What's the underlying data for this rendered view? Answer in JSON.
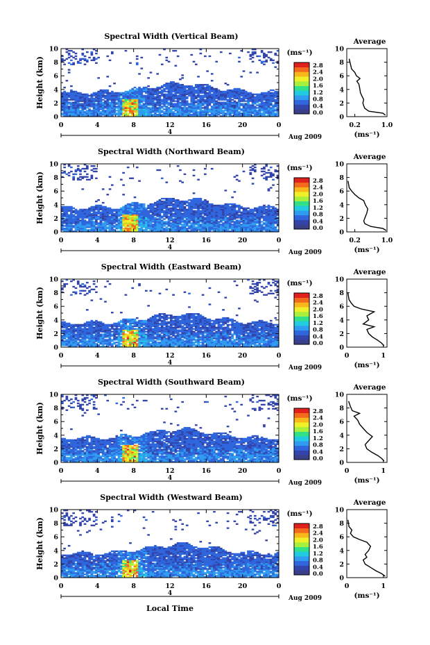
{
  "figure": {
    "date_label": "Aug 2009",
    "xlabel_bottom": "Local Time",
    "ylabel": "Height (km)",
    "unit_label": "(ms⁻¹)",
    "average_title": "Average",
    "average_xlabel": "(ms⁻¹)",
    "day_mark": "4",
    "colorbar_ticks": [
      "0.0",
      "0.4",
      "0.8",
      "1.2",
      "1.6",
      "2.0",
      "2.4",
      "2.8"
    ],
    "colorbar_colors": [
      "#3a3f8a",
      "#3344aa",
      "#2f66dd",
      "#2f9cf0",
      "#22cce0",
      "#33e08a",
      "#a8f03c",
      "#f0f028",
      "#f8b81c",
      "#f46a1c",
      "#e0201c"
    ]
  },
  "chart_data": [
    {
      "type": "heatmap",
      "title": "Spectral Width (Vertical Beam)",
      "xlabel": "",
      "ylabel": "Height (km)",
      "x_ticks": [
        "0",
        "4",
        "8",
        "12",
        "16",
        "20",
        "0"
      ],
      "xlim": [
        0,
        24
      ],
      "y_ticks": [
        "0",
        "2",
        "4",
        "6",
        "8",
        "10"
      ],
      "ylim": [
        0,
        10
      ],
      "colorbar": {
        "range": [
          0.0,
          2.8
        ]
      },
      "profile": {
        "title": "Average",
        "x_ticks": [
          "0.2",
          "1.0"
        ],
        "xlim": [
          0.0,
          1.0
        ],
        "y_ticks": [
          "0",
          "2",
          "4",
          "6",
          "8",
          "10"
        ],
        "ylim": [
          0,
          10
        ],
        "points": [
          [
            0.96,
            0.2
          ],
          [
            0.9,
            0.5
          ],
          [
            0.55,
            0.8
          ],
          [
            0.45,
            1.2
          ],
          [
            0.42,
            1.6
          ],
          [
            0.4,
            2.0
          ],
          [
            0.42,
            2.5
          ],
          [
            0.38,
            3.0
          ],
          [
            0.34,
            3.5
          ],
          [
            0.32,
            4.2
          ],
          [
            0.3,
            4.8
          ],
          [
            0.25,
            5.2
          ],
          [
            0.33,
            5.6
          ],
          [
            0.24,
            6.0
          ],
          [
            0.2,
            6.5
          ],
          [
            0.12,
            7.0
          ],
          [
            0.1,
            7.5
          ],
          [
            0.08,
            8.0
          ],
          [
            0.06,
            8.5
          ]
        ]
      }
    },
    {
      "type": "heatmap",
      "title": "Spectral Width (Northward Beam)",
      "xlabel": "",
      "ylabel": "Height (km)",
      "x_ticks": [
        "0",
        "4",
        "8",
        "12",
        "16",
        "20",
        "0"
      ],
      "xlim": [
        0,
        24
      ],
      "y_ticks": [
        "0",
        "2",
        "4",
        "6",
        "8",
        "10"
      ],
      "ylim": [
        0,
        10
      ],
      "colorbar": {
        "range": [
          0.0,
          2.8
        ]
      },
      "profile": {
        "title": "Average",
        "x_ticks": [
          "0.2",
          "1.0"
        ],
        "xlim": [
          0.0,
          1.0
        ],
        "y_ticks": [
          "0",
          "2",
          "4",
          "6",
          "8",
          "10"
        ],
        "ylim": [
          0,
          10
        ],
        "points": [
          [
            0.98,
            0.2
          ],
          [
            0.9,
            0.5
          ],
          [
            0.6,
            0.8
          ],
          [
            0.45,
            1.2
          ],
          [
            0.42,
            1.6
          ],
          [
            0.46,
            2.2
          ],
          [
            0.5,
            2.8
          ],
          [
            0.52,
            3.4
          ],
          [
            0.46,
            4.0
          ],
          [
            0.42,
            4.6
          ],
          [
            0.3,
            5.0
          ],
          [
            0.2,
            5.5
          ],
          [
            0.12,
            6.0
          ],
          [
            0.06,
            6.5
          ],
          [
            0.03,
            7.5
          ]
        ]
      }
    },
    {
      "type": "heatmap",
      "title": "Spectral Width (Eastward Beam)",
      "xlabel": "",
      "ylabel": "Height (km)",
      "x_ticks": [
        "0",
        "4",
        "8",
        "12",
        "16",
        "20",
        "0"
      ],
      "xlim": [
        0,
        24
      ],
      "y_ticks": [
        "0",
        "2",
        "4",
        "6",
        "8",
        "10"
      ],
      "ylim": [
        0,
        10
      ],
      "colorbar": {
        "range": [
          0.0,
          2.8
        ]
      },
      "profile": {
        "title": "Average",
        "x_ticks": [
          "0",
          "1"
        ],
        "xlim": [
          0,
          1.1
        ],
        "y_ticks": [
          "0",
          "2",
          "4",
          "6",
          "8",
          "10"
        ],
        "ylim": [
          0,
          10
        ],
        "points": [
          [
            1.02,
            0.2
          ],
          [
            0.95,
            0.6
          ],
          [
            0.85,
            1.0
          ],
          [
            0.7,
            1.5
          ],
          [
            0.6,
            2.0
          ],
          [
            0.55,
            2.6
          ],
          [
            0.75,
            3.0
          ],
          [
            0.45,
            3.4
          ],
          [
            0.6,
            4.0
          ],
          [
            0.55,
            4.6
          ],
          [
            0.75,
            5.2
          ],
          [
            0.4,
            5.6
          ],
          [
            0.2,
            6.0
          ],
          [
            0.12,
            6.5
          ],
          [
            0.06,
            7.0
          ],
          [
            0.03,
            8.0
          ]
        ]
      }
    },
    {
      "type": "heatmap",
      "title": "Spectral Width (Southward Beam)",
      "xlabel": "",
      "ylabel": "Height (km)",
      "x_ticks": [
        "0",
        "4",
        "8",
        "12",
        "16",
        "20",
        "0"
      ],
      "xlim": [
        0,
        24
      ],
      "y_ticks": [
        "0",
        "2",
        "4",
        "6",
        "8",
        "10"
      ],
      "ylim": [
        0,
        10
      ],
      "colorbar": {
        "range": [
          0.0,
          2.8
        ]
      },
      "profile": {
        "title": "Average",
        "x_ticks": [
          "0",
          "1"
        ],
        "xlim": [
          0,
          1.1
        ],
        "y_ticks": [
          "0",
          "2",
          "4",
          "6",
          "8",
          "10"
        ],
        "ylim": [
          0,
          10
        ],
        "points": [
          [
            1.02,
            0.2
          ],
          [
            0.95,
            0.6
          ],
          [
            0.85,
            1.0
          ],
          [
            0.68,
            1.5
          ],
          [
            0.55,
            2.0
          ],
          [
            0.5,
            2.6
          ],
          [
            0.6,
            3.2
          ],
          [
            0.7,
            3.8
          ],
          [
            0.55,
            4.4
          ],
          [
            0.45,
            5.0
          ],
          [
            0.35,
            5.6
          ],
          [
            0.3,
            6.2
          ],
          [
            0.2,
            6.8
          ],
          [
            0.35,
            7.2
          ],
          [
            0.15,
            7.6
          ],
          [
            0.1,
            8.2
          ],
          [
            0.05,
            9.0
          ]
        ]
      }
    },
    {
      "type": "heatmap",
      "title": "Spectral Width (Westward Beam)",
      "xlabel": "Local Time",
      "ylabel": "Height (km)",
      "x_ticks": [
        "0",
        "4",
        "8",
        "12",
        "16",
        "20",
        "0"
      ],
      "xlim": [
        0,
        24
      ],
      "y_ticks": [
        "0",
        "2",
        "4",
        "6",
        "8",
        "10"
      ],
      "ylim": [
        0,
        10
      ],
      "colorbar": {
        "range": [
          0.0,
          2.8
        ]
      },
      "profile": {
        "title": "Average",
        "x_ticks": [
          "0",
          "1"
        ],
        "xlim": [
          0,
          1.1
        ],
        "y_ticks": [
          "0",
          "2",
          "4",
          "6",
          "8",
          "10"
        ],
        "ylim": [
          0,
          10
        ],
        "points": [
          [
            1.05,
            0.2
          ],
          [
            0.95,
            0.6
          ],
          [
            0.8,
            1.0
          ],
          [
            0.65,
            1.5
          ],
          [
            0.5,
            2.0
          ],
          [
            0.45,
            2.6
          ],
          [
            0.55,
            3.0
          ],
          [
            0.5,
            3.4
          ],
          [
            0.6,
            4.0
          ],
          [
            0.65,
            4.6
          ],
          [
            0.55,
            5.2
          ],
          [
            0.35,
            5.6
          ],
          [
            0.18,
            6.0
          ],
          [
            0.1,
            6.5
          ],
          [
            0.14,
            7.0
          ],
          [
            0.06,
            7.5
          ],
          [
            0.03,
            8.5
          ]
        ]
      }
    }
  ]
}
